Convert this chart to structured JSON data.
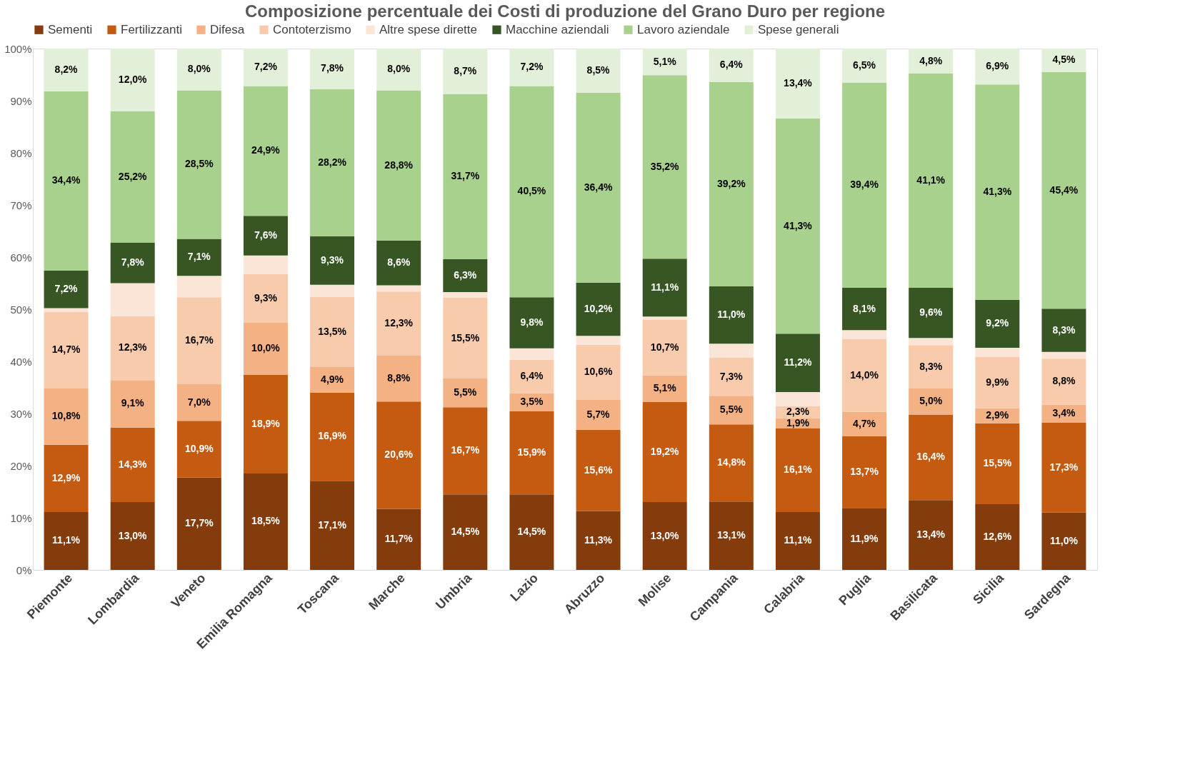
{
  "chart_data": {
    "type": "bar",
    "stacked": true,
    "title": "Composizione percentuale dei Costi di produzione del Grano Duro per regione",
    "categories": [
      "Piemonte",
      "Lombardia",
      "Veneto",
      "Emilia Romagna",
      "Toscana",
      "Marche",
      "Umbria",
      "Lazio",
      "Abruzzo",
      "Molise",
      "Campania",
      "Calabria",
      "Puglia",
      "Basilicata",
      "Sicilia",
      "Sardegna"
    ],
    "series": [
      {
        "name": "Sementi",
        "color": "#843c0c",
        "values": [
          11.1,
          13.0,
          17.7,
          18.5,
          17.1,
          11.7,
          14.5,
          14.5,
          11.3,
          13.0,
          13.1,
          11.1,
          11.9,
          13.4,
          12.6,
          11.0
        ],
        "value_labels": [
          "11,1%",
          "13,0%",
          "17,7%",
          "18,5%",
          "17,1%",
          "11,7%",
          "14,5%",
          "14,5%",
          "11,3%",
          "13,0%",
          "13,1%",
          "11,1%",
          "11,9%",
          "13,4%",
          "12,6%",
          "11,0%"
        ]
      },
      {
        "name": "Fertilizzanti",
        "color": "#c55a11",
        "values": [
          12.9,
          14.3,
          10.9,
          18.9,
          16.9,
          20.6,
          16.7,
          15.9,
          15.6,
          19.2,
          14.8,
          16.1,
          13.7,
          16.4,
          15.5,
          17.3
        ],
        "value_labels": [
          "12,9%",
          "14,3%",
          "10,9%",
          "18,9%",
          "16,9%",
          "20,6%",
          "16,7%",
          "15,9%",
          "15,6%",
          "19,2%",
          "14,8%",
          "16,1%",
          "13,7%",
          "16,4%",
          "15,5%",
          "17,3%"
        ]
      },
      {
        "name": "Difesa",
        "color": "#f4b183",
        "values": [
          10.8,
          9.1,
          7.0,
          10.0,
          4.9,
          8.8,
          5.5,
          3.5,
          5.7,
          5.1,
          5.5,
          1.9,
          4.7,
          5.0,
          2.9,
          3.4
        ],
        "value_labels": [
          "10,8%",
          "9,1%",
          "7,0%",
          "10,0%",
          "4,9%",
          "8,8%",
          "5,5%",
          "3,5%",
          "5,7%",
          "5,1%",
          "5,5%",
          "1,9%",
          "4,7%",
          "5,0%",
          "2,9%",
          "3,4%"
        ]
      },
      {
        "name": "Contoterzismo",
        "color": "#f8cbad",
        "values": [
          14.7,
          12.3,
          16.7,
          9.3,
          13.5,
          12.3,
          15.5,
          6.4,
          10.6,
          10.7,
          7.3,
          2.3,
          14.0,
          8.3,
          9.9,
          8.8
        ],
        "value_labels": [
          "14,7%",
          "12,3%",
          "16,7%",
          "9,3%",
          "13,5%",
          "12,3%",
          "15,5%",
          "6,4%",
          "10,6%",
          "10,7%",
          "7,3%",
          "2,3%",
          "14,0%",
          "8,3%",
          "9,9%",
          "8,8%"
        ]
      },
      {
        "name": "Altre spese dirette",
        "color": "#fbe5d6",
        "values": [
          0.7,
          6.3,
          4.1,
          3.6,
          2.3,
          1.2,
          1.1,
          2.2,
          1.7,
          0.6,
          2.7,
          2.7,
          1.7,
          1.4,
          1.7,
          1.3
        ],
        "value_labels": [
          null,
          null,
          null,
          null,
          null,
          null,
          null,
          null,
          null,
          null,
          null,
          null,
          null,
          null,
          null,
          null
        ]
      },
      {
        "name": "Macchine aziendali",
        "color": "#375623",
        "values": [
          7.2,
          7.8,
          7.1,
          7.6,
          9.3,
          8.6,
          6.3,
          9.8,
          10.2,
          11.1,
          11.0,
          11.2,
          8.1,
          9.6,
          9.2,
          8.3
        ],
        "value_labels": [
          "7,2%",
          "7,8%",
          "7,1%",
          "7,6%",
          "9,3%",
          "8,6%",
          "6,3%",
          "9,8%",
          "10,2%",
          "11,1%",
          "11,0%",
          "11,2%",
          "8,1%",
          "9,6%",
          "9,2%",
          "8,3%"
        ]
      },
      {
        "name": "Lavoro aziendale",
        "color": "#a9d18e",
        "values": [
          34.4,
          25.2,
          28.5,
          24.9,
          28.2,
          28.8,
          31.7,
          40.5,
          36.4,
          35.2,
          39.2,
          41.3,
          39.4,
          41.1,
          41.3,
          45.4
        ],
        "value_labels": [
          "34,4%",
          "25,2%",
          "28,5%",
          "24,9%",
          "28,2%",
          "28,8%",
          "31,7%",
          "40,5%",
          "36,4%",
          "35,2%",
          "39,2%",
          "41,3%",
          "39,4%",
          "41,1%",
          "41,3%",
          "45,4%"
        ]
      },
      {
        "name": "Spese generali",
        "color": "#e2f0d9",
        "values": [
          8.2,
          12.0,
          8.0,
          7.2,
          7.8,
          8.0,
          8.7,
          7.2,
          8.5,
          5.1,
          6.4,
          13.4,
          6.5,
          4.8,
          6.9,
          4.5
        ],
        "value_labels": [
          "8,2%",
          "12,0%",
          "8,0%",
          "7,2%",
          "7,8%",
          "8,0%",
          "8,7%",
          "7,2%",
          "8,5%",
          "5,1%",
          "6,4%",
          "13,4%",
          "6,5%",
          "4,8%",
          "6,9%",
          "4,5%"
        ]
      }
    ],
    "ylim": [
      0,
      100
    ],
    "yticks": [
      {
        "value": 0,
        "label": "0%"
      },
      {
        "value": 10,
        "label": "10%"
      },
      {
        "value": 20,
        "label": "20%"
      },
      {
        "value": 30,
        "label": "30%"
      },
      {
        "value": 40,
        "label": "40%"
      },
      {
        "value": 50,
        "label": "50%"
      },
      {
        "value": 60,
        "label": "60%"
      },
      {
        "value": 70,
        "label": "70%"
      },
      {
        "value": 80,
        "label": "80%"
      },
      {
        "value": 90,
        "label": "90%"
      },
      {
        "value": 100,
        "label": "100%"
      }
    ],
    "grid": false,
    "legend": "top"
  }
}
